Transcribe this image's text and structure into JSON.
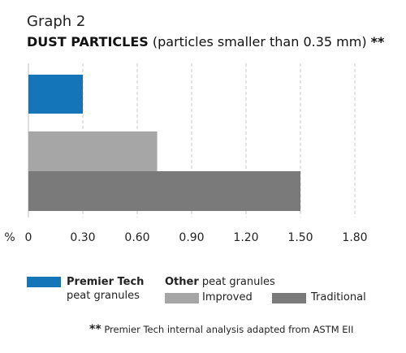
{
  "graph_label": "Graph 2",
  "title": {
    "strong": "DUST PARTICLES",
    "sub": "(particles smaller than 0.35 mm)",
    "mark": "**"
  },
  "chart_data": {
    "type": "bar",
    "orientation": "horizontal",
    "unit_label": "%",
    "categories": [
      "Premier Tech peat granules",
      "Improved",
      "Traditional"
    ],
    "values": [
      0.3,
      0.71,
      1.5
    ],
    "xlim": [
      0,
      1.8
    ],
    "xticks": [
      "0",
      "0.30",
      "0.60",
      "0.90",
      "1.20",
      "1.50",
      "1.80"
    ],
    "xtick_values": [
      0,
      0.3,
      0.6,
      0.9,
      1.2,
      1.5,
      1.8
    ],
    "grid": "vertical-dashed",
    "colors": [
      "#1476b8",
      "#a6a6a6",
      "#7a7a7a"
    ]
  },
  "legend": {
    "premier": {
      "bold": "Premier Tech",
      "normal": "peat granules",
      "color": "#1476b8"
    },
    "other_heading": {
      "bold": "Other",
      "normal": "peat granules"
    },
    "improved": {
      "label": "Improved",
      "color": "#a6a6a6"
    },
    "traditional": {
      "label": "Traditional",
      "color": "#7a7a7a"
    }
  },
  "footnote": {
    "mark": "**",
    "text": "Premier Tech internal analysis adapted from ASTM EII"
  }
}
